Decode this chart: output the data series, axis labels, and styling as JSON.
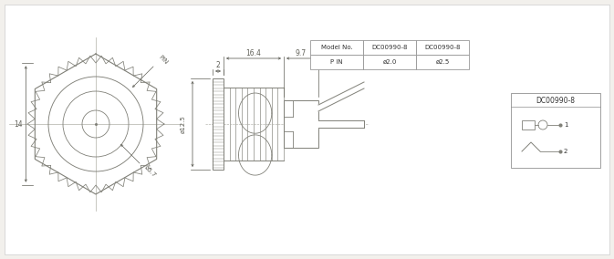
{
  "bg_color": "#f2f0ec",
  "line_color": "#808078",
  "dim_color": "#606058",
  "title_box": "DC00990-8",
  "table_headers": [
    "Model No.",
    "DC00990-8",
    "DC00990-8"
  ],
  "table_row": [
    "P IN",
    "ø2.0",
    "ø2.5"
  ],
  "dim_top_left": "16.4",
  "dim_top_right": "9.7",
  "dim_flange": "2",
  "dim_height": "ø12.5",
  "front_pin_label": "PIN",
  "front_diam_label": "ø5.7",
  "front_size_label": "14"
}
